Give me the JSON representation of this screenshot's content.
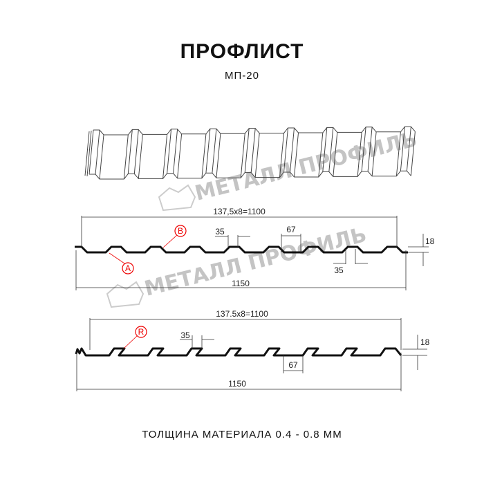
{
  "header": {
    "title": "ПРОФЛИСТ",
    "subtitle": "МП-20"
  },
  "watermark": {
    "text": "МЕТАЛЛ ПРОФИЛЬ",
    "color": "#c4c4c4"
  },
  "profile_top": {
    "pitch_label": "137,5x8=1100",
    "width_label": "1150",
    "crest_label": "35",
    "valley_label": "67",
    "bottom_crest_label": "35",
    "height_label": "18",
    "marker_a": "A",
    "marker_b": "B"
  },
  "profile_bottom": {
    "pitch_label": "137.5x8=1100",
    "width_label": "1150",
    "crest_label": "35",
    "valley_label": "67",
    "height_label": "18",
    "marker_r": "R"
  },
  "colors": {
    "line": "#111111",
    "marker": "#ee1111",
    "dimension": "#333333"
  },
  "footer": {
    "thickness": "ТОЛЩИНА МАТЕРИАЛА 0.4 - 0.8 ММ"
  }
}
